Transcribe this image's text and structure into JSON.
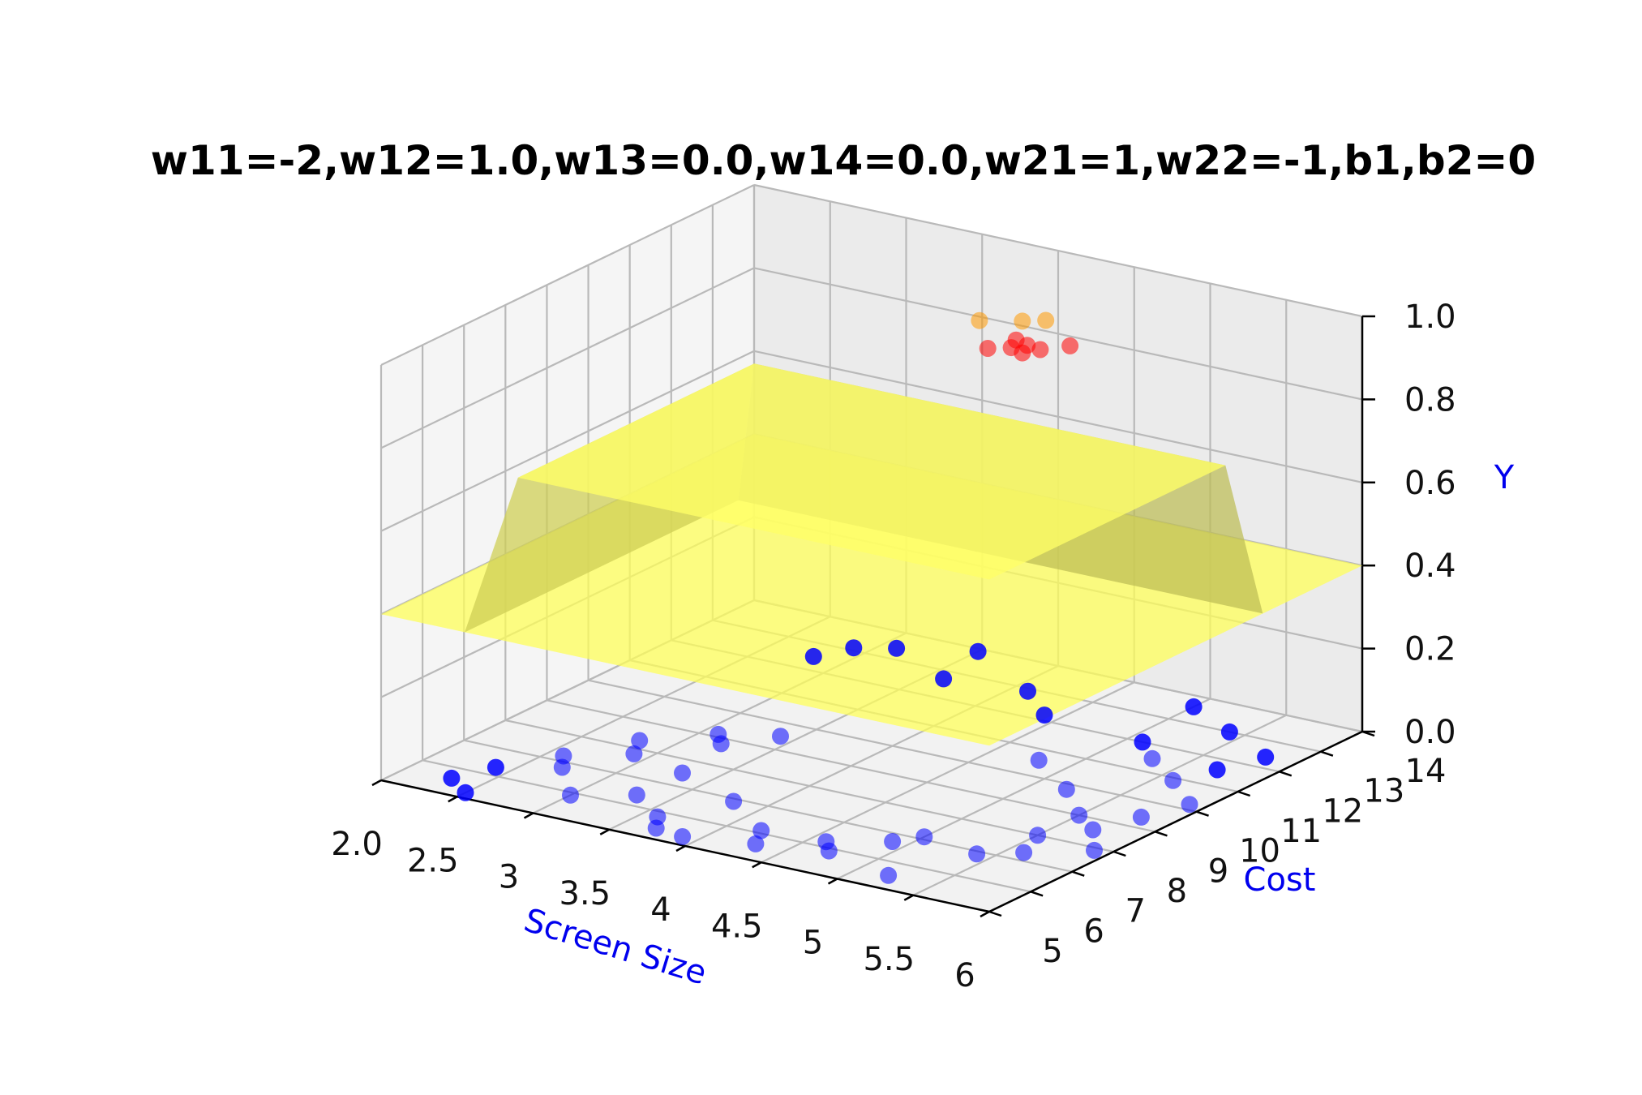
{
  "chart_data": {
    "type": "scatter",
    "plot3d": true,
    "title": "w11=-2,w12=1.0,w13=0.0,w14=0.0,w21=1,w22=-1,b1,b2=0",
    "xlabel": "Screen Size",
    "ylabel": "Cost",
    "zlabel": "Y",
    "xlim": [
      2.0,
      6
    ],
    "ylim": [
      5,
      14
    ],
    "zlim": [
      0.0,
      1.0
    ],
    "x_ticks": [
      "2.0",
      "2.5",
      "3",
      "3.5",
      "4",
      "4.5",
      "5",
      "5.5",
      "6"
    ],
    "y_ticks": [
      "5",
      "6",
      "7",
      "8",
      "9",
      "10",
      "11",
      "12",
      "13",
      "14"
    ],
    "z_ticks": [
      "0.0",
      "0.2",
      "0.4",
      "0.6",
      "0.8",
      "1.0"
    ],
    "grid": true,
    "colors": {
      "surface": "#ffff44",
      "positive_points": "#ff0000",
      "near_positive_points": "#ff9900",
      "negative_points": "#0000ff",
      "label": "#0000ee"
    },
    "surface": {
      "low_value": 0.4,
      "high_value": 0.8,
      "high_region_x": [
        2.9,
        6
      ],
      "high_region_y": [
        5,
        10.7
      ]
    },
    "series": [
      {
        "color": "#0000ff",
        "points": [
          [
            2.3,
            5.6,
            0
          ],
          [
            2.4,
            6.3,
            0
          ],
          [
            2.5,
            5.2,
            0
          ],
          [
            2.6,
            7.2,
            0
          ],
          [
            2.7,
            6.8,
            0
          ],
          [
            2.8,
            8.3,
            0
          ],
          [
            2.9,
            7.8,
            0
          ],
          [
            3.0,
            5.9,
            0
          ],
          [
            3.1,
            9.1,
            0
          ],
          [
            3.2,
            8.8,
            0
          ],
          [
            3.3,
            6.4,
            0
          ],
          [
            3.4,
            9.5,
            0
          ],
          [
            3.6,
            5.8,
            0
          ],
          [
            3.7,
            5.4,
            0
          ],
          [
            3.8,
            6.9,
            0
          ],
          [
            3.9,
            5.3,
            0
          ],
          [
            4.2,
            6.1,
            0
          ],
          [
            4.3,
            5.6,
            0
          ],
          [
            4.6,
            6.2,
            0
          ],
          [
            4.7,
            5.9,
            0
          ],
          [
            4.9,
            6.7,
            0
          ],
          [
            5.0,
            7.1,
            0
          ],
          [
            5.2,
            5.5,
            0
          ],
          [
            5.4,
            6.9,
            0
          ],
          [
            5.5,
            8.0,
            0
          ],
          [
            5.6,
            7.3,
            0
          ],
          [
            5.7,
            8.6,
            0
          ],
          [
            5.8,
            9.4,
            0
          ],
          [
            5.9,
            7.9,
            0
          ],
          [
            5.9,
            10.2,
            0
          ],
          [
            5.6,
            10.9,
            0
          ],
          [
            5.3,
            11.5,
            0
          ],
          [
            4.4,
            12.2,
            0
          ],
          [
            3.6,
            12.7,
            0
          ],
          [
            3.1,
            13.4,
            0
          ],
          [
            2.8,
            12.5,
            0
          ],
          [
            4.1,
            12.9,
            0
          ],
          [
            5.1,
            12.0,
            0
          ],
          [
            5.7,
            11.6,
            0
          ],
          [
            5.8,
            12.4,
            0
          ],
          [
            5.4,
            13.0,
            0
          ],
          [
            5.0,
            13.6,
            0
          ],
          [
            3.5,
            13.9,
            0
          ],
          [
            2.9,
            13.1,
            0
          ],
          [
            4.8,
            10.6,
            0
          ],
          [
            5.2,
            9.8,
            0
          ],
          [
            5.5,
            9.0,
            0
          ],
          [
            3.3,
            7.5,
            0
          ]
        ]
      },
      {
        "color": "#ff0000",
        "points": [
          [
            4.6,
            10.1,
            1
          ],
          [
            4.7,
            10.3,
            1
          ],
          [
            4.75,
            10.5,
            1
          ],
          [
            4.85,
            10.45,
            1
          ],
          [
            4.95,
            10.8,
            1
          ],
          [
            4.65,
            10.6,
            1
          ],
          [
            4.8,
            10.2,
            1
          ]
        ]
      },
      {
        "color": "#ff9900",
        "points": [
          [
            4.5,
            11.3,
            1
          ],
          [
            4.6,
            11.5,
            1
          ],
          [
            4.3,
            11.0,
            1
          ]
        ]
      }
    ]
  }
}
